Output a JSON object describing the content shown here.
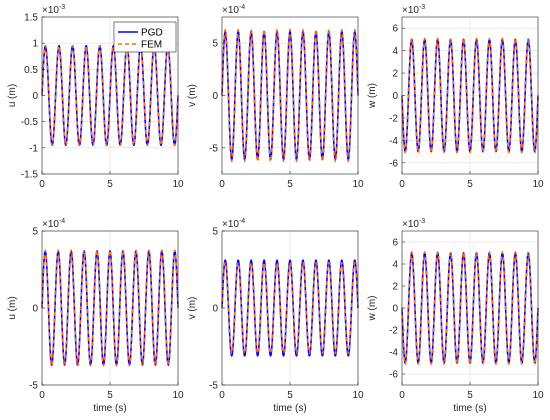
{
  "figure": {
    "legend": [
      "PGD",
      "FEM"
    ],
    "colors": {
      "PGD": "#0000ff",
      "FEM": "#ff6a10"
    }
  },
  "chart_data": [
    {
      "type": "line",
      "title": "",
      "xlabel": "",
      "ylabel": "u (m)",
      "exponent": "-3",
      "xlim": [
        0,
        10
      ],
      "ylim": [
        -1.5,
        1.5
      ],
      "xticks": [
        "0",
        "5",
        "10"
      ],
      "yticks": [
        -1.5,
        -1,
        -0.5,
        0,
        0.5,
        1,
        1.5
      ],
      "ytick_labels": [
        "-1.5",
        "-1",
        "-0.5",
        "0",
        "0.5",
        "1",
        "1.5"
      ],
      "grid": true,
      "legend": "top-right",
      "series": [
        {
          "name": "PGD",
          "frequency_hz": 1.0,
          "amplitude": 0.95,
          "phase": "sin",
          "y_at_0": 0,
          "y_min_start": -0.95
        },
        {
          "name": "FEM",
          "frequency_hz": 1.0,
          "amplitude": 0.95,
          "phase": "sin"
        }
      ]
    },
    {
      "type": "line",
      "title": "",
      "xlabel": "",
      "ylabel": "v (m)",
      "exponent": "-4",
      "xlim": [
        0,
        10
      ],
      "ylim": [
        -7.5,
        7.5
      ],
      "xticks": [
        "0",
        "5",
        "10"
      ],
      "yticks": [
        -5,
        0,
        5
      ],
      "ytick_labels": [
        "-5",
        "0",
        "5"
      ],
      "grid": true,
      "series": [
        {
          "name": "PGD",
          "frequency_hz": 1.05,
          "amplitude": 6.1,
          "phase": "sin"
        },
        {
          "name": "FEM",
          "frequency_hz": 1.05,
          "amplitude": 6.3,
          "phase": "sin"
        }
      ]
    },
    {
      "type": "line",
      "title": "",
      "xlabel": "",
      "ylabel": "w (m)",
      "exponent": "-3",
      "xlim": [
        0,
        10
      ],
      "ylim": [
        -7,
        7
      ],
      "xticks": [
        "0",
        "5",
        "10"
      ],
      "yticks": [
        -6,
        -4,
        -2,
        0,
        2,
        4,
        6
      ],
      "ytick_labels": [
        "-6",
        "-4",
        "-2",
        "0",
        "2",
        "4",
        "6"
      ],
      "grid": true,
      "series": [
        {
          "name": "PGD",
          "frequency_hz": 1.05,
          "amplitude": 5.0,
          "phase": "-sin"
        },
        {
          "name": "FEM",
          "frequency_hz": 1.05,
          "amplitude": 5.1,
          "phase": "-sin"
        }
      ]
    },
    {
      "type": "line",
      "title": "",
      "xlabel": "time (s)",
      "ylabel": "u (m)",
      "exponent": "-4",
      "xlim": [
        0,
        10
      ],
      "ylim": [
        -5,
        5
      ],
      "xticks": [
        "0",
        "5",
        "10"
      ],
      "yticks": [
        -5,
        0,
        5
      ],
      "ytick_labels": [
        "-5",
        "0",
        "5"
      ],
      "grid": true,
      "series": [
        {
          "name": "PGD",
          "frequency_hz": 1.05,
          "amplitude": 3.7,
          "phase": "sin"
        },
        {
          "name": "FEM",
          "frequency_hz": 1.05,
          "amplitude": 3.75,
          "phase": "sin"
        }
      ]
    },
    {
      "type": "line",
      "title": "",
      "xlabel": "time (s)",
      "ylabel": "v (m)",
      "exponent": "-4",
      "xlim": [
        0,
        10
      ],
      "ylim": [
        -5,
        5
      ],
      "xticks": [
        "0",
        "5",
        "10"
      ],
      "yticks": [
        -5,
        0,
        5
      ],
      "ytick_labels": [
        "-5",
        "0",
        "5"
      ],
      "grid": true,
      "series": [
        {
          "name": "PGD",
          "frequency_hz": 1.05,
          "amplitude": 3.1,
          "phase": "sin"
        },
        {
          "name": "FEM",
          "frequency_hz": 1.05,
          "amplitude": 2.95,
          "phase": "sin"
        }
      ]
    },
    {
      "type": "line",
      "title": "",
      "xlabel": "time (s)",
      "ylabel": "w (m)",
      "exponent": "-3",
      "xlim": [
        0,
        10
      ],
      "ylim": [
        -7,
        7
      ],
      "xticks": [
        "0",
        "5",
        "10"
      ],
      "yticks": [
        -6,
        -4,
        -2,
        0,
        2,
        4,
        6
      ],
      "ytick_labels": [
        "-6",
        "-4",
        "-2",
        "0",
        "2",
        "4",
        "6"
      ],
      "grid": true,
      "series": [
        {
          "name": "PGD",
          "frequency_hz": 1.05,
          "amplitude": 5.0,
          "phase": "-sin"
        },
        {
          "name": "FEM",
          "frequency_hz": 1.05,
          "amplitude": 5.1,
          "phase": "-sin"
        }
      ]
    }
  ]
}
